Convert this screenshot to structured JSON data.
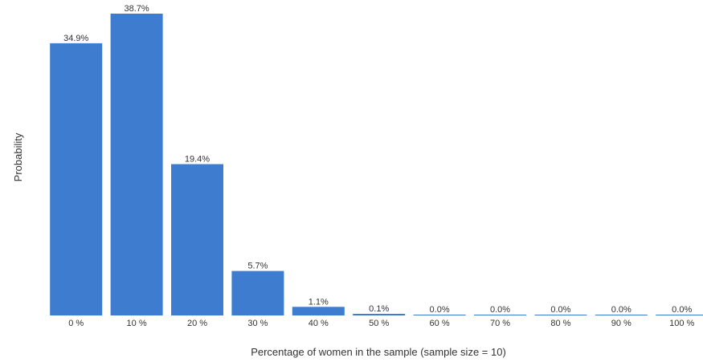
{
  "chart_data": {
    "type": "bar",
    "categories": [
      "0 %",
      "10 %",
      "20 %",
      "30 %",
      "40 %",
      "50 %",
      "60 %",
      "70 %",
      "80 %",
      "90 %",
      "100 %"
    ],
    "values": [
      34.9,
      38.7,
      19.4,
      5.7,
      1.1,
      0.1,
      0.0,
      0.0,
      0.0,
      0.0,
      0.0
    ],
    "data_labels": [
      "34.9%",
      "38.7%",
      "19.4%",
      "5.7%",
      "1.1%",
      "0.1%",
      "0.0%",
      "0.0%",
      "0.0%",
      "0.0%",
      "0.0%"
    ],
    "title": "",
    "xlabel": "Percentage of women in the sample (sample size = 10)",
    "ylabel": "Probability",
    "ylim": [
      0,
      38.7
    ],
    "grid": false,
    "legend": "none",
    "bar_color": "#3d7ccf"
  }
}
